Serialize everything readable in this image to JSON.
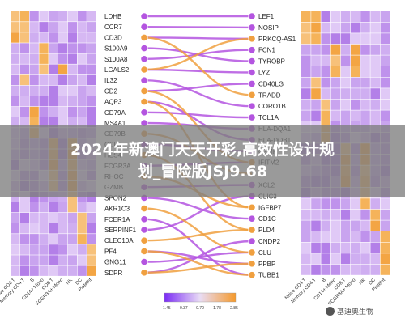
{
  "left_genes": [
    "LDHB",
    "CCR7",
    "CD3D",
    "S100A9",
    "S100A8",
    "LGALS2",
    "IL32",
    "CD2",
    "AQP3",
    "CD79A",
    "MS4A1",
    "CD79B",
    "CCL5",
    "HES4",
    "FCGR3A",
    "RHOC",
    "GZMB",
    "SPON2",
    "AKR1C3",
    "FCER1A",
    "SERPINF1",
    "CLEC10A",
    "PF4",
    "GNG11",
    "SDPR"
  ],
  "right_genes": [
    "LEF1",
    "NOSIP",
    "PRKCQ-AS1",
    "FCN1",
    "TYROBP",
    "LYZ",
    "CD40LG",
    "TRADD",
    "CORO1B",
    "TCL1A",
    "HLA-DQA1",
    "HLA-DQB1",
    "GZMK",
    "IFITM2",
    "",
    "XCL2",
    "CLIC3",
    "IGFBP7",
    "CD1C",
    "PLD4",
    "CNDP2",
    "CLU",
    "PPBP",
    "TUBB1"
  ],
  "cell_types": [
    "Naive CD4 T",
    "Memory CD4 T",
    "B",
    "CD14+ Mono",
    "CD8 T",
    "FCGR3A+ Mono",
    "NK",
    "DC",
    "Platelet"
  ],
  "legend": {
    "ticks": [
      "-1.45",
      "-0.37",
      "0.70",
      "1.78",
      "2.85"
    ],
    "low_color": "#7b2cf5",
    "mid_color": "#e9dcf5",
    "high_color": "#f59a2c"
  },
  "overlay": {
    "line1": "2024年新澳门天天开彩,高效性设计规",
    "line2": "划_冒险版JSJ9.68"
  },
  "watermark": "基迪奥生物",
  "node_colors": {
    "purple": "#b455e0",
    "orange": "#f0a040"
  }
}
